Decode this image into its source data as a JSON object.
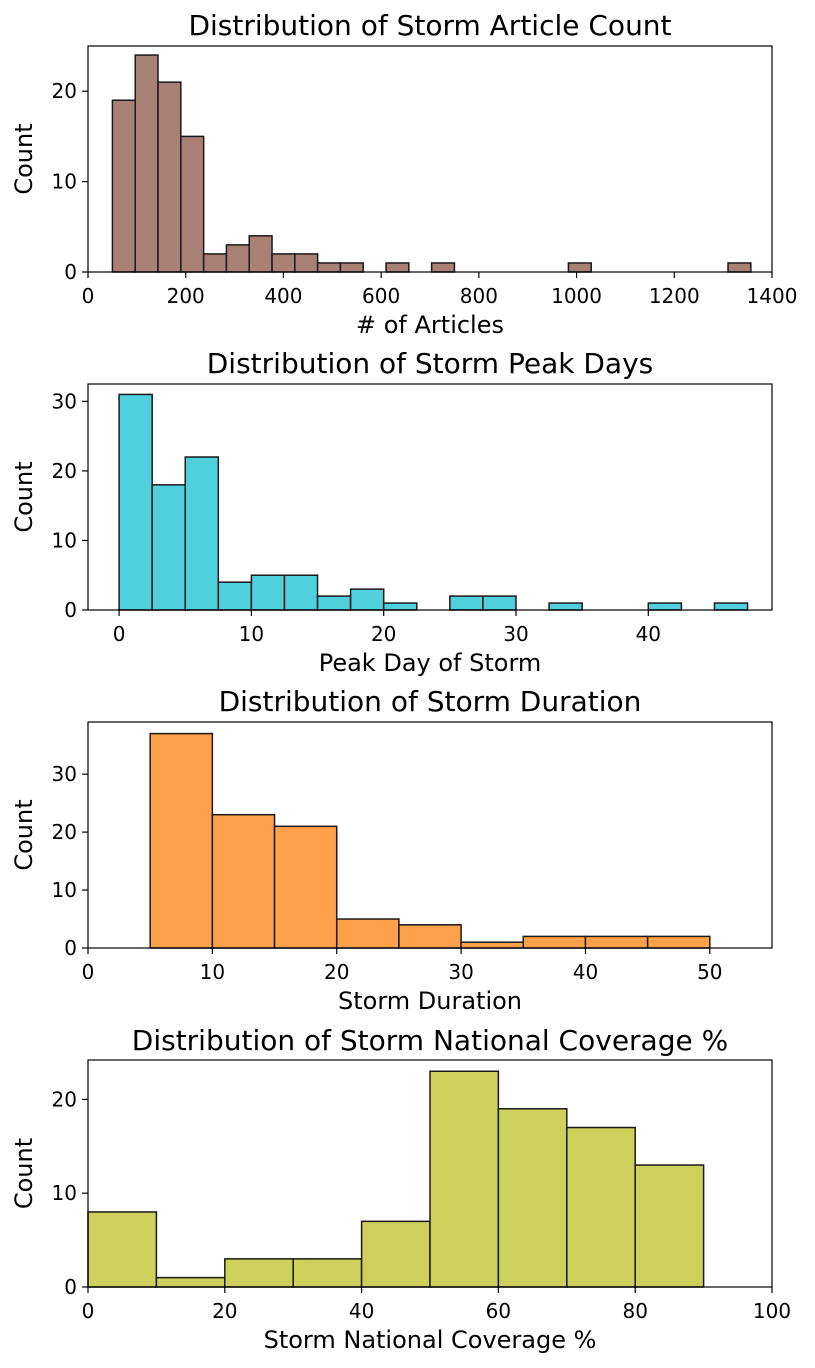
{
  "chart_data": [
    {
      "type": "bar",
      "title": "Distribution of Storm Article Count",
      "xlabel": "# of Articles",
      "ylabel": "Count",
      "color": "#a98074",
      "xlim": [
        0,
        1400
      ],
      "ylim": [
        0,
        25
      ],
      "xticks": [
        0,
        200,
        400,
        600,
        800,
        1000,
        1200,
        1400
      ],
      "yticks": [
        0,
        10,
        20
      ],
      "grid": false,
      "bins": [
        {
          "x0": 50,
          "x1": 96.7,
          "count": 19
        },
        {
          "x0": 96.7,
          "x1": 143.3,
          "count": 24
        },
        {
          "x0": 143.3,
          "x1": 190,
          "count": 21
        },
        {
          "x0": 190,
          "x1": 236.7,
          "count": 15
        },
        {
          "x0": 236.7,
          "x1": 283.3,
          "count": 2
        },
        {
          "x0": 283.3,
          "x1": 330,
          "count": 3
        },
        {
          "x0": 330,
          "x1": 376.7,
          "count": 4
        },
        {
          "x0": 376.7,
          "x1": 423.3,
          "count": 2
        },
        {
          "x0": 423.3,
          "x1": 470,
          "count": 2
        },
        {
          "x0": 470,
          "x1": 516.7,
          "count": 1
        },
        {
          "x0": 516.7,
          "x1": 563.3,
          "count": 1
        },
        {
          "x0": 610,
          "x1": 656.7,
          "count": 1
        },
        {
          "x0": 703.3,
          "x1": 750,
          "count": 1
        },
        {
          "x0": 983.3,
          "x1": 1030,
          "count": 1
        },
        {
          "x0": 1310,
          "x1": 1356.7,
          "count": 1
        }
      ]
    },
    {
      "type": "bar",
      "title": "Distribution of Storm Peak Days",
      "xlabel": "Peak Day of Storm",
      "ylabel": "Count",
      "color": "#50cfdc",
      "xlim": [
        -2.35,
        49.35
      ],
      "ylim": [
        0,
        32.5
      ],
      "xticks": [
        0,
        10,
        20,
        30,
        40
      ],
      "yticks": [
        0,
        10,
        20,
        30
      ],
      "grid": false,
      "bins": [
        {
          "x0": 0,
          "x1": 2.5,
          "count": 31
        },
        {
          "x0": 2.5,
          "x1": 5,
          "count": 18
        },
        {
          "x0": 5,
          "x1": 7.5,
          "count": 22
        },
        {
          "x0": 7.5,
          "x1": 10,
          "count": 4
        },
        {
          "x0": 10,
          "x1": 12.5,
          "count": 5
        },
        {
          "x0": 12.5,
          "x1": 15,
          "count": 5
        },
        {
          "x0": 15,
          "x1": 17.5,
          "count": 2
        },
        {
          "x0": 17.5,
          "x1": 20,
          "count": 3
        },
        {
          "x0": 20,
          "x1": 22.5,
          "count": 1
        },
        {
          "x0": 25,
          "x1": 27.5,
          "count": 2
        },
        {
          "x0": 27.5,
          "x1": 30,
          "count": 2
        },
        {
          "x0": 32.5,
          "x1": 35,
          "count": 1
        },
        {
          "x0": 40,
          "x1": 42.5,
          "count": 1
        },
        {
          "x0": 45,
          "x1": 47.5,
          "count": 1
        }
      ]
    },
    {
      "type": "bar",
      "title": "Distribution of Storm Duration",
      "xlabel": "Storm Duration",
      "ylabel": "Count",
      "color": "#ffa04a",
      "xlim": [
        0,
        55
      ],
      "ylim": [
        0,
        39
      ],
      "xticks": [
        0,
        10,
        20,
        30,
        40,
        50
      ],
      "yticks": [
        0,
        10,
        20,
        30
      ],
      "grid": false,
      "bins": [
        {
          "x0": 5,
          "x1": 10,
          "count": 37
        },
        {
          "x0": 10,
          "x1": 15,
          "count": 23
        },
        {
          "x0": 15,
          "x1": 20,
          "count": 21
        },
        {
          "x0": 20,
          "x1": 25,
          "count": 5
        },
        {
          "x0": 25,
          "x1": 30,
          "count": 4
        },
        {
          "x0": 30,
          "x1": 35,
          "count": 1
        },
        {
          "x0": 35,
          "x1": 40,
          "count": 2
        },
        {
          "x0": 40,
          "x1": 45,
          "count": 2
        },
        {
          "x0": 45,
          "x1": 50,
          "count": 2
        }
      ]
    },
    {
      "type": "bar",
      "title": "Distribution of Storm National Coverage %",
      "xlabel": "Storm National Coverage %",
      "ylabel": "Count",
      "color": "#cdd05a",
      "xlim": [
        0,
        100
      ],
      "ylim": [
        0,
        24.2
      ],
      "xticks": [
        0,
        20,
        40,
        60,
        80,
        100
      ],
      "yticks": [
        0,
        10,
        20
      ],
      "grid": false,
      "bins": [
        {
          "x0": 0,
          "x1": 10,
          "count": 8
        },
        {
          "x0": 10,
          "x1": 20,
          "count": 1
        },
        {
          "x0": 20,
          "x1": 30,
          "count": 3
        },
        {
          "x0": 30,
          "x1": 40,
          "count": 3
        },
        {
          "x0": 40,
          "x1": 50,
          "count": 7
        },
        {
          "x0": 50,
          "x1": 60,
          "count": 23
        },
        {
          "x0": 60,
          "x1": 70,
          "count": 19
        },
        {
          "x0": 70,
          "x1": 80,
          "count": 17
        },
        {
          "x0": 80,
          "x1": 90,
          "count": 13
        }
      ]
    }
  ]
}
